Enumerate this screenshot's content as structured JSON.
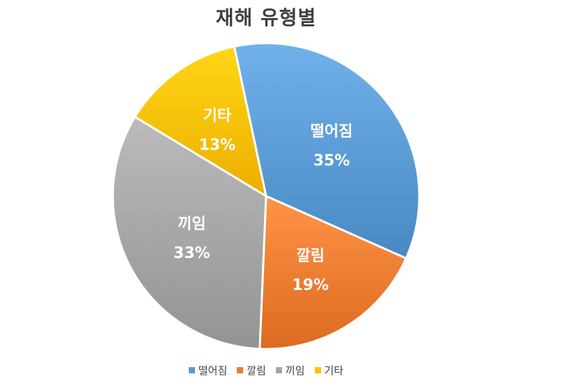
{
  "chart_data": {
    "type": "pie",
    "title": "재해 유형별",
    "categories": [
      "떨어짐",
      "깔림",
      "끼임",
      "기타"
    ],
    "values": [
      35,
      19,
      33,
      13
    ],
    "value_labels": [
      "35%",
      "19%",
      "33%",
      "13%"
    ],
    "colors": [
      "#5B9BD5",
      "#ED7D31",
      "#A5A5A5",
      "#FFC000"
    ],
    "legend_position": "bottom",
    "start_angle_deg": -12
  }
}
